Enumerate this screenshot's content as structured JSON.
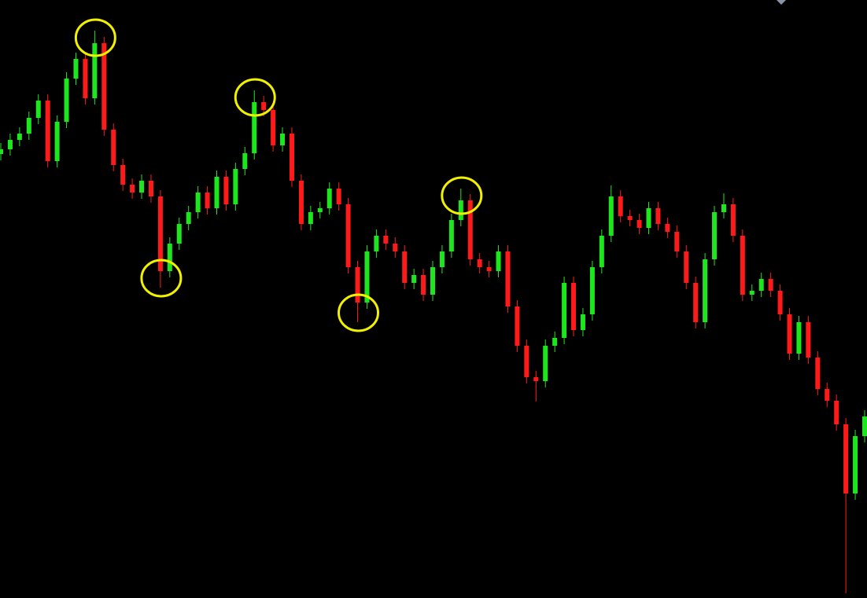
{
  "chart_data": {
    "type": "candlestick",
    "title": "",
    "xlabel": "",
    "ylabel": "",
    "ylim": [
      0,
      761
    ],
    "grid": false,
    "legend": "none",
    "colors": {
      "background": "#000000",
      "up": "#1ee61e",
      "down": "#ff1a1a",
      "annotation": "#f0f000",
      "marker": "#8a96a8"
    },
    "ohlc": [
      [
        565,
        579,
        557,
        571
      ],
      [
        571,
        591,
        563,
        583
      ],
      [
        583,
        599,
        575,
        591
      ],
      [
        591,
        619,
        583,
        611
      ],
      [
        611,
        641,
        603,
        633
      ],
      [
        633,
        641,
        548,
        556
      ],
      [
        556,
        614,
        548,
        606
      ],
      [
        606,
        669,
        598,
        661
      ],
      [
        661,
        694,
        653,
        686
      ],
      [
        686,
        694,
        628,
        636
      ],
      [
        636,
        722,
        628,
        706
      ],
      [
        706,
        714,
        588,
        596
      ],
      [
        596,
        604,
        543,
        551
      ],
      [
        551,
        559,
        518,
        526
      ],
      [
        526,
        534,
        508,
        516
      ],
      [
        516,
        539,
        508,
        531
      ],
      [
        531,
        539,
        503,
        511
      ],
      [
        511,
        519,
        395,
        416
      ],
      [
        416,
        459,
        408,
        451
      ],
      [
        451,
        484,
        443,
        476
      ],
      [
        476,
        499,
        468,
        491
      ],
      [
        491,
        524,
        483,
        516
      ],
      [
        516,
        524,
        488,
        496
      ],
      [
        496,
        544,
        488,
        536
      ],
      [
        536,
        544,
        493,
        501
      ],
      [
        501,
        554,
        493,
        546
      ],
      [
        546,
        574,
        538,
        566
      ],
      [
        566,
        646,
        558,
        631
      ],
      [
        631,
        639,
        613,
        621
      ],
      [
        621,
        629,
        568,
        576
      ],
      [
        576,
        599,
        568,
        591
      ],
      [
        591,
        599,
        523,
        531
      ],
      [
        531,
        539,
        468,
        476
      ],
      [
        476,
        499,
        468,
        491
      ],
      [
        491,
        504,
        483,
        496
      ],
      [
        496,
        529,
        488,
        521
      ],
      [
        521,
        529,
        493,
        501
      ],
      [
        501,
        509,
        413,
        421
      ],
      [
        421,
        429,
        351,
        376
      ],
      [
        376,
        449,
        368,
        441
      ],
      [
        441,
        469,
        433,
        461
      ],
      [
        461,
        469,
        443,
        451
      ],
      [
        451,
        459,
        433,
        441
      ],
      [
        441,
        449,
        393,
        401
      ],
      [
        401,
        419,
        393,
        411
      ],
      [
        411,
        419,
        378,
        386
      ],
      [
        386,
        429,
        378,
        421
      ],
      [
        421,
        449,
        413,
        441
      ],
      [
        441,
        489,
        433,
        481
      ],
      [
        481,
        521,
        473,
        506
      ],
      [
        506,
        514,
        423,
        431
      ],
      [
        431,
        439,
        413,
        421
      ],
      [
        421,
        429,
        408,
        416
      ],
      [
        416,
        449,
        408,
        441
      ],
      [
        441,
        449,
        363,
        371
      ],
      [
        371,
        379,
        313,
        321
      ],
      [
        321,
        329,
        273,
        281
      ],
      [
        281,
        289,
        250,
        276
      ],
      [
        276,
        329,
        268,
        321
      ],
      [
        321,
        339,
        313,
        331
      ],
      [
        331,
        409,
        323,
        401
      ],
      [
        401,
        409,
        333,
        341
      ],
      [
        341,
        369,
        333,
        361
      ],
      [
        361,
        429,
        353,
        421
      ],
      [
        421,
        469,
        413,
        461
      ],
      [
        461,
        525,
        453,
        511
      ],
      [
        511,
        519,
        478,
        486
      ],
      [
        486,
        494,
        473,
        481
      ],
      [
        481,
        489,
        463,
        471
      ],
      [
        471,
        504,
        463,
        496
      ],
      [
        496,
        504,
        468,
        476
      ],
      [
        476,
        484,
        458,
        466
      ],
      [
        466,
        474,
        433,
        441
      ],
      [
        441,
        449,
        393,
        401
      ],
      [
        401,
        409,
        343,
        351
      ],
      [
        351,
        439,
        343,
        431
      ],
      [
        431,
        499,
        423,
        491
      ],
      [
        491,
        515,
        483,
        501
      ],
      [
        501,
        509,
        453,
        461
      ],
      [
        461,
        469,
        378,
        386
      ],
      [
        386,
        399,
        378,
        391
      ],
      [
        391,
        414,
        383,
        406
      ],
      [
        406,
        414,
        383,
        391
      ],
      [
        391,
        399,
        353,
        361
      ],
      [
        361,
        369,
        303,
        311
      ],
      [
        311,
        359,
        303,
        351
      ],
      [
        351,
        359,
        298,
        306
      ],
      [
        306,
        314,
        258,
        266
      ],
      [
        266,
        274,
        243,
        251
      ],
      [
        251,
        259,
        213,
        221
      ],
      [
        221,
        229,
        6,
        133
      ],
      [
        133,
        214,
        125,
        206
      ],
      [
        206,
        239,
        198,
        231
      ]
    ],
    "annotations": [
      {
        "type": "swing-high",
        "candle": 10
      },
      {
        "type": "swing-low",
        "candle": 17
      },
      {
        "type": "swing-high",
        "candle": 27
      },
      {
        "type": "swing-low",
        "candle": 38
      },
      {
        "type": "swing-high",
        "candle": 49
      }
    ]
  }
}
